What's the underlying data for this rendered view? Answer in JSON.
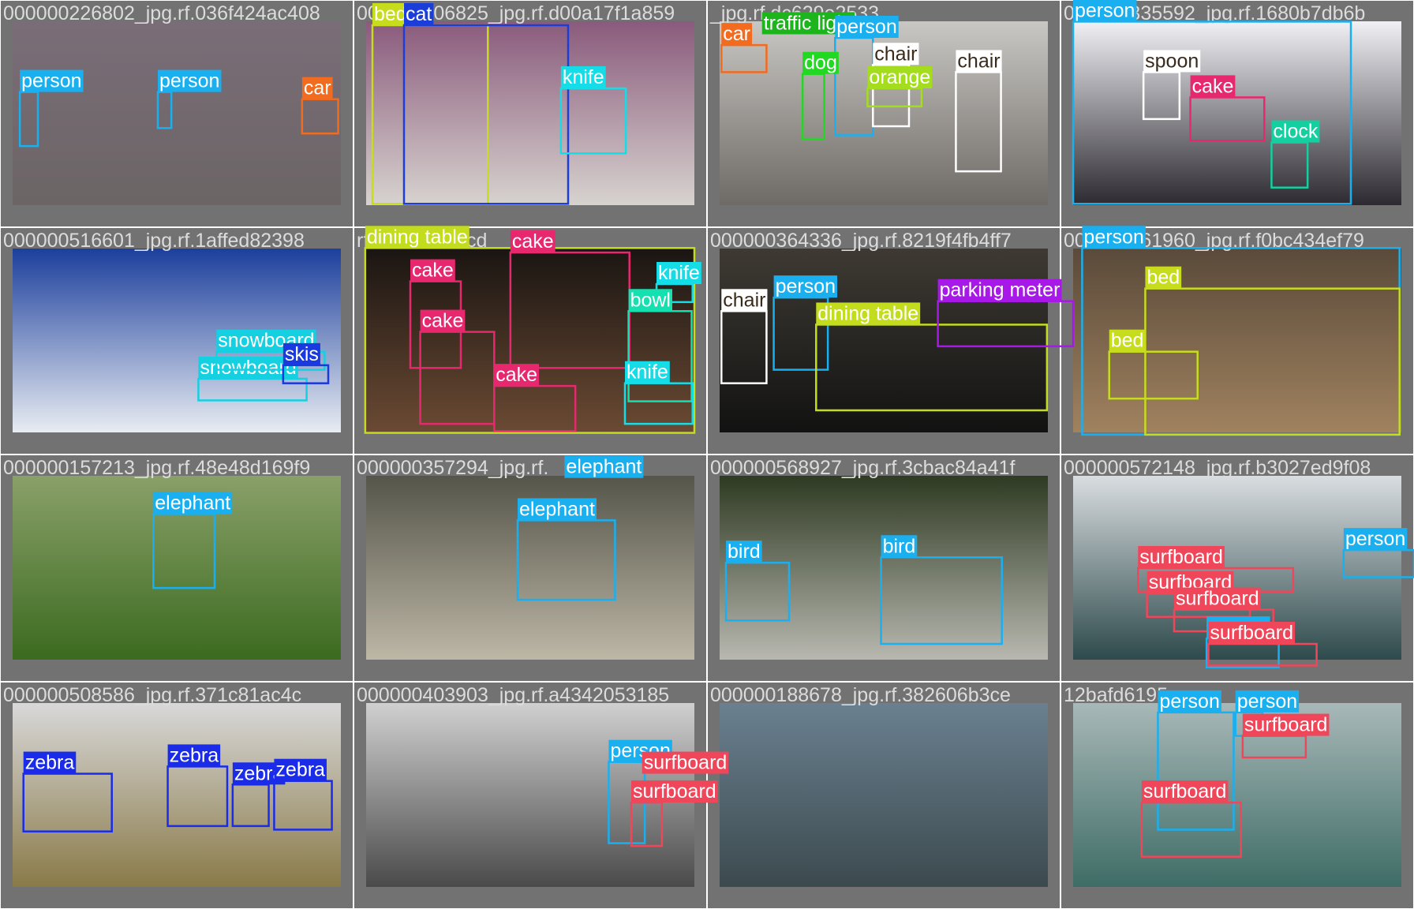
{
  "tiles": [
    {
      "title": "000000226802_jpg.rf.036f424ac408",
      "boxes": [
        {
          "label": "person",
          "color": "#1ab0f0"
        },
        {
          "label": "person",
          "color": "#1ab0f0"
        },
        {
          "label": "car",
          "color": "#f26b1e"
        }
      ]
    },
    {
      "title": "000000106825_jpg.rf.d00a17f1a859",
      "boxes": [
        {
          "label": "bed",
          "color": "#c8dc1e"
        },
        {
          "label": "cat",
          "color": "#1b3ed8"
        },
        {
          "label": "knife",
          "color": "#14dde8"
        }
      ]
    },
    {
      "title": "_jpg.rf.dc629e2533",
      "boxes": [
        {
          "label": "traffic light",
          "color": "#1eb41e"
        },
        {
          "label": "person",
          "color": "#1ab0f0"
        },
        {
          "label": "car",
          "color": "#f26b1e"
        },
        {
          "label": "dog",
          "color": "#22d822"
        },
        {
          "label": "chair",
          "color": "#ffffff"
        },
        {
          "label": "chair",
          "color": "#ffffff"
        },
        {
          "label": "orange",
          "color": "#a4dc1e"
        }
      ]
    },
    {
      "title": "000000335592_jpg.rf.1680b7db6b",
      "boxes": [
        {
          "label": "person",
          "color": "#1ab0f0"
        },
        {
          "label": "spoon",
          "color": "#ffffff"
        },
        {
          "label": "cake",
          "color": "#e8286e"
        },
        {
          "label": "clock",
          "color": "#14d0a0"
        }
      ]
    },
    {
      "title": "000000516601_jpg.rf.1affed82398",
      "boxes": [
        {
          "label": "snowboard",
          "color": "#14d0e0"
        },
        {
          "label": "snowboard",
          "color": "#14d0e0"
        },
        {
          "label": "skis",
          "color": "#1a3ae0"
        }
      ]
    },
    {
      "title": "rf.757efced1cd",
      "boxes": [
        {
          "label": "dining table",
          "color": "#c4dc1e"
        },
        {
          "label": "cake",
          "color": "#e8286e"
        },
        {
          "label": "cake",
          "color": "#e8286e"
        },
        {
          "label": "cake",
          "color": "#e8286e"
        },
        {
          "label": "cake",
          "color": "#e8286e"
        },
        {
          "label": "knife",
          "color": "#14dde8"
        },
        {
          "label": "bowl",
          "color": "#15e0b0"
        },
        {
          "label": "knife",
          "color": "#14dde8"
        }
      ]
    },
    {
      "title": "000000364336_jpg.rf.8219f4fb4ff7",
      "boxes": [
        {
          "label": "person",
          "color": "#1ab0f0"
        },
        {
          "label": "chair",
          "color": "#ffffff"
        },
        {
          "label": "dining table",
          "color": "#c4dc1e"
        },
        {
          "label": "parking meter",
          "color": "#a818e8"
        }
      ]
    },
    {
      "title": "000000561960_jpg.rf.f0bc434ef79",
      "boxes": [
        {
          "label": "person",
          "color": "#1ab0f0"
        },
        {
          "label": "bed",
          "color": "#c8dc1e"
        },
        {
          "label": "bed",
          "color": "#c8dc1e"
        }
      ]
    },
    {
      "title": "000000157213_jpg.rf.48e48d169f9",
      "boxes": [
        {
          "label": "elephant",
          "color": "#1ab0f0"
        }
      ]
    },
    {
      "title": "000000357294_jpg.rf.",
      "boxes": [
        {
          "label": "elephant",
          "color": "#1ab0f0"
        },
        {
          "label": "elephant",
          "color": "#1ab0f0"
        }
      ]
    },
    {
      "title": "000000568927_jpg.rf.3cbac84a41f",
      "boxes": [
        {
          "label": "bird",
          "color": "#1ab0f0"
        },
        {
          "label": "bird",
          "color": "#1ab0f0"
        }
      ]
    },
    {
      "title": "000000572148_jpg.rf.b3027ed9f08",
      "boxes": [
        {
          "label": "person",
          "color": "#1ab0f0"
        },
        {
          "label": "surfboard",
          "color": "#f0465a"
        },
        {
          "label": "surfboard",
          "color": "#f0465a"
        },
        {
          "label": "surfboard",
          "color": "#f0465a"
        },
        {
          "label": "person",
          "color": "#1ab0f0"
        },
        {
          "label": "surfboard",
          "color": "#f0465a"
        }
      ]
    },
    {
      "title": "000000508586_jpg.rf.371c81ac4c",
      "boxes": [
        {
          "label": "zebra",
          "color": "#1a2ce8"
        },
        {
          "label": "zebra",
          "color": "#1a2ce8"
        },
        {
          "label": "zebra",
          "color": "#1a2ce8"
        },
        {
          "label": "zebra",
          "color": "#1a2ce8"
        }
      ]
    },
    {
      "title": "000000403903_jpg.rf.a4342053185",
      "boxes": [
        {
          "label": "person",
          "color": "#1ab0f0"
        },
        {
          "label": "surfboard",
          "color": "#f0465a"
        },
        {
          "label": "surfboard",
          "color": "#f0465a"
        }
      ]
    },
    {
      "title": "000000188678_jpg.rf.382606b3ce",
      "boxes": []
    },
    {
      "title": "12bafd6195",
      "boxes": [
        {
          "label": "person",
          "color": "#1ab0f0"
        },
        {
          "label": "person",
          "color": "#1ab0f0"
        },
        {
          "label": "surfboard",
          "color": "#f0465a"
        },
        {
          "label": "surfboard",
          "color": "#f0465a"
        }
      ]
    }
  ]
}
